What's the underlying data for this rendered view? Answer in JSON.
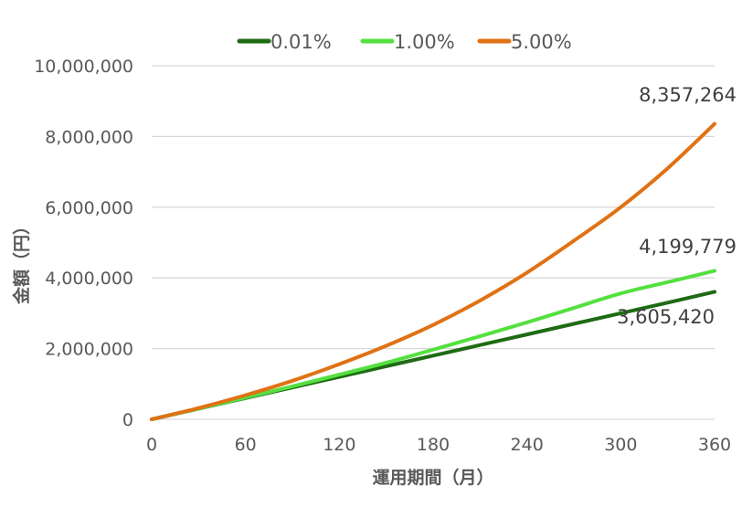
{
  "chart_data": {
    "type": "line",
    "title": "",
    "xlabel": "運用期間（月）",
    "ylabel": "金額（円）",
    "xlim": [
      0,
      360
    ],
    "ylim": [
      0,
      10000000
    ],
    "x_ticks": [
      0,
      60,
      120,
      180,
      240,
      300,
      360
    ],
    "y_ticks": [
      0,
      2000000,
      4000000,
      6000000,
      8000000,
      10000000
    ],
    "y_tick_labels": [
      "0",
      "2,000,000",
      "4,000,000",
      "6,000,000",
      "8,000,000",
      "10,000,000"
    ],
    "grid": "horizontal",
    "legend_position": "top",
    "x": [
      0,
      30,
      60,
      90,
      120,
      150,
      180,
      210,
      240,
      270,
      300,
      330,
      360
    ],
    "series": [
      {
        "name": "0.01%",
        "color": "#1e6b14",
        "values": [
          0,
          300000,
          600000,
          900000,
          1200000,
          1500000,
          1800000,
          2100000,
          2400000,
          2700000,
          3000000,
          3300000,
          3605420
        ],
        "end_label": "3,605,420"
      },
      {
        "name": "1.00%",
        "color": "#55e040",
        "values": [
          0,
          304000,
          615000,
          932000,
          1263000,
          1600000,
          1970000,
          2350000,
          2740000,
          3150000,
          3560000,
          3880000,
          4199779
        ],
        "end_label": "4,199,779"
      },
      {
        "name": "5.00%",
        "color": "#e07214",
        "values": [
          0,
          319000,
          682000,
          1090000,
          1560000,
          2080000,
          2670000,
          3360000,
          4150000,
          5050000,
          6000000,
          7100000,
          8357264
        ],
        "end_label": "8,357,264"
      }
    ]
  }
}
